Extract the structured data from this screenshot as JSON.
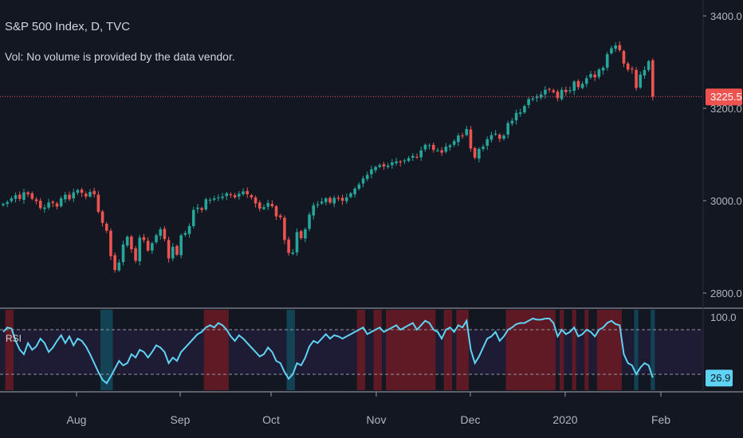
{
  "header": {
    "title": "S&P 500 Index, D, TVC",
    "volume_note": "Vol: No volume is provided by the data vendor."
  },
  "indicator": {
    "label": "RSI"
  },
  "colors": {
    "background": "#131722",
    "up": "#26a69a",
    "down": "#ef5350",
    "rsi_line": "#5fd3f3",
    "price_line": "#ef5350",
    "overbought_fill": "#6b1a24",
    "oversold_fill": "#134a5c",
    "rsi_band": "#1e1b34"
  },
  "chart_data": [
    {
      "type": "candlestick",
      "title": "S&P 500 Index, D, TVC",
      "price_axis": {
        "ticks": [
          2800,
          3000,
          3200,
          3400
        ],
        "labels": [
          "2800.0",
          "3000.0",
          "3200.0",
          "3400.0"
        ],
        "range": [
          2780,
          3410
        ]
      },
      "time_axis": {
        "labels": [
          "Aug",
          "Sep",
          "Oct",
          "Nov",
          "Dec",
          "2020",
          "Feb"
        ]
      },
      "last_price": 3225.5,
      "last_price_label": "3225.5",
      "closes": [
        2993,
        2997,
        3005,
        3012,
        3004,
        3018,
        3014,
        3004,
        2999,
        2984,
        2985,
        2996,
        2995,
        2987,
        3005,
        3013,
        3003,
        3018,
        3023,
        3017,
        3009,
        3019,
        3014,
        2976,
        2952,
        2935,
        2880,
        2850,
        2866,
        2905,
        2922,
        2895,
        2870,
        2920,
        2915,
        2892,
        2908,
        2925,
        2938,
        2917,
        2875,
        2900,
        2883,
        2925,
        2930,
        2945,
        2980,
        2985,
        2980,
        3003,
        3002,
        3005,
        3007,
        3009,
        3016,
        3012,
        3007,
        3015,
        3020,
        3014,
        3007,
        2994,
        2983,
        2986,
        2995,
        2988,
        2966,
        2964,
        2915,
        2887,
        2888,
        2932,
        2919,
        2938,
        2970,
        2990,
        2992,
        2998,
        3005,
        2996,
        3006,
        3004,
        3000,
        3007,
        3016,
        3026,
        3035,
        3048,
        3056,
        3068,
        3073,
        3077,
        3074,
        3076,
        3083,
        3085,
        3083,
        3087,
        3092,
        3097,
        3094,
        3109,
        3121,
        3120,
        3110,
        3109,
        3104,
        3117,
        3120,
        3129,
        3141,
        3140,
        3155,
        3113,
        3093,
        3112,
        3117,
        3133,
        3142,
        3145,
        3134,
        3141,
        3168,
        3173,
        3190,
        3191,
        3205,
        3220,
        3221,
        3225,
        3230,
        3240,
        3240,
        3235,
        3222,
        3240,
        3235,
        3239,
        3258,
        3246,
        3253,
        3265,
        3274,
        3267,
        3284,
        3288,
        3317,
        3330,
        3336,
        3326,
        3297,
        3284,
        3284,
        3244,
        3273,
        3283,
        3302,
        3225
      ]
    },
    {
      "type": "line",
      "name": "RSI",
      "y_ticks": [
        100
      ],
      "y_labels": [
        "100.0"
      ],
      "bands": [
        30,
        70
      ],
      "last_value_label": "26.9",
      "overbought_threshold": 70,
      "oversold_threshold": 30,
      "values": [
        68,
        72,
        71,
        60,
        52,
        48,
        58,
        52,
        55,
        62,
        58,
        50,
        54,
        60,
        65,
        58,
        64,
        56,
        62,
        60,
        55,
        48,
        40,
        32,
        25,
        22,
        28,
        35,
        42,
        38,
        40,
        48,
        45,
        52,
        50,
        45,
        50,
        56,
        54,
        50,
        40,
        45,
        42,
        50,
        54,
        58,
        62,
        66,
        68,
        72,
        74,
        72,
        76,
        74,
        70,
        64,
        60,
        65,
        62,
        58,
        54,
        50,
        46,
        48,
        54,
        50,
        42,
        40,
        32,
        26,
        30,
        40,
        38,
        45,
        55,
        60,
        58,
        62,
        66,
        62,
        65,
        64,
        62,
        64,
        66,
        68,
        70,
        72,
        66,
        68,
        70,
        72,
        68,
        70,
        72,
        74,
        70,
        72,
        74,
        76,
        70,
        74,
        78,
        76,
        70,
        68,
        62,
        70,
        72,
        68,
        74,
        72,
        78,
        52,
        40,
        46,
        54,
        62,
        64,
        68,
        60,
        64,
        70,
        72,
        75,
        76,
        76,
        78,
        80,
        79,
        79,
        80,
        80,
        76,
        64,
        70,
        66,
        68,
        72,
        64,
        66,
        70,
        68,
        64,
        70,
        72,
        76,
        78,
        75,
        74,
        48,
        40,
        38,
        30,
        36,
        40,
        38,
        27
      ]
    }
  ]
}
